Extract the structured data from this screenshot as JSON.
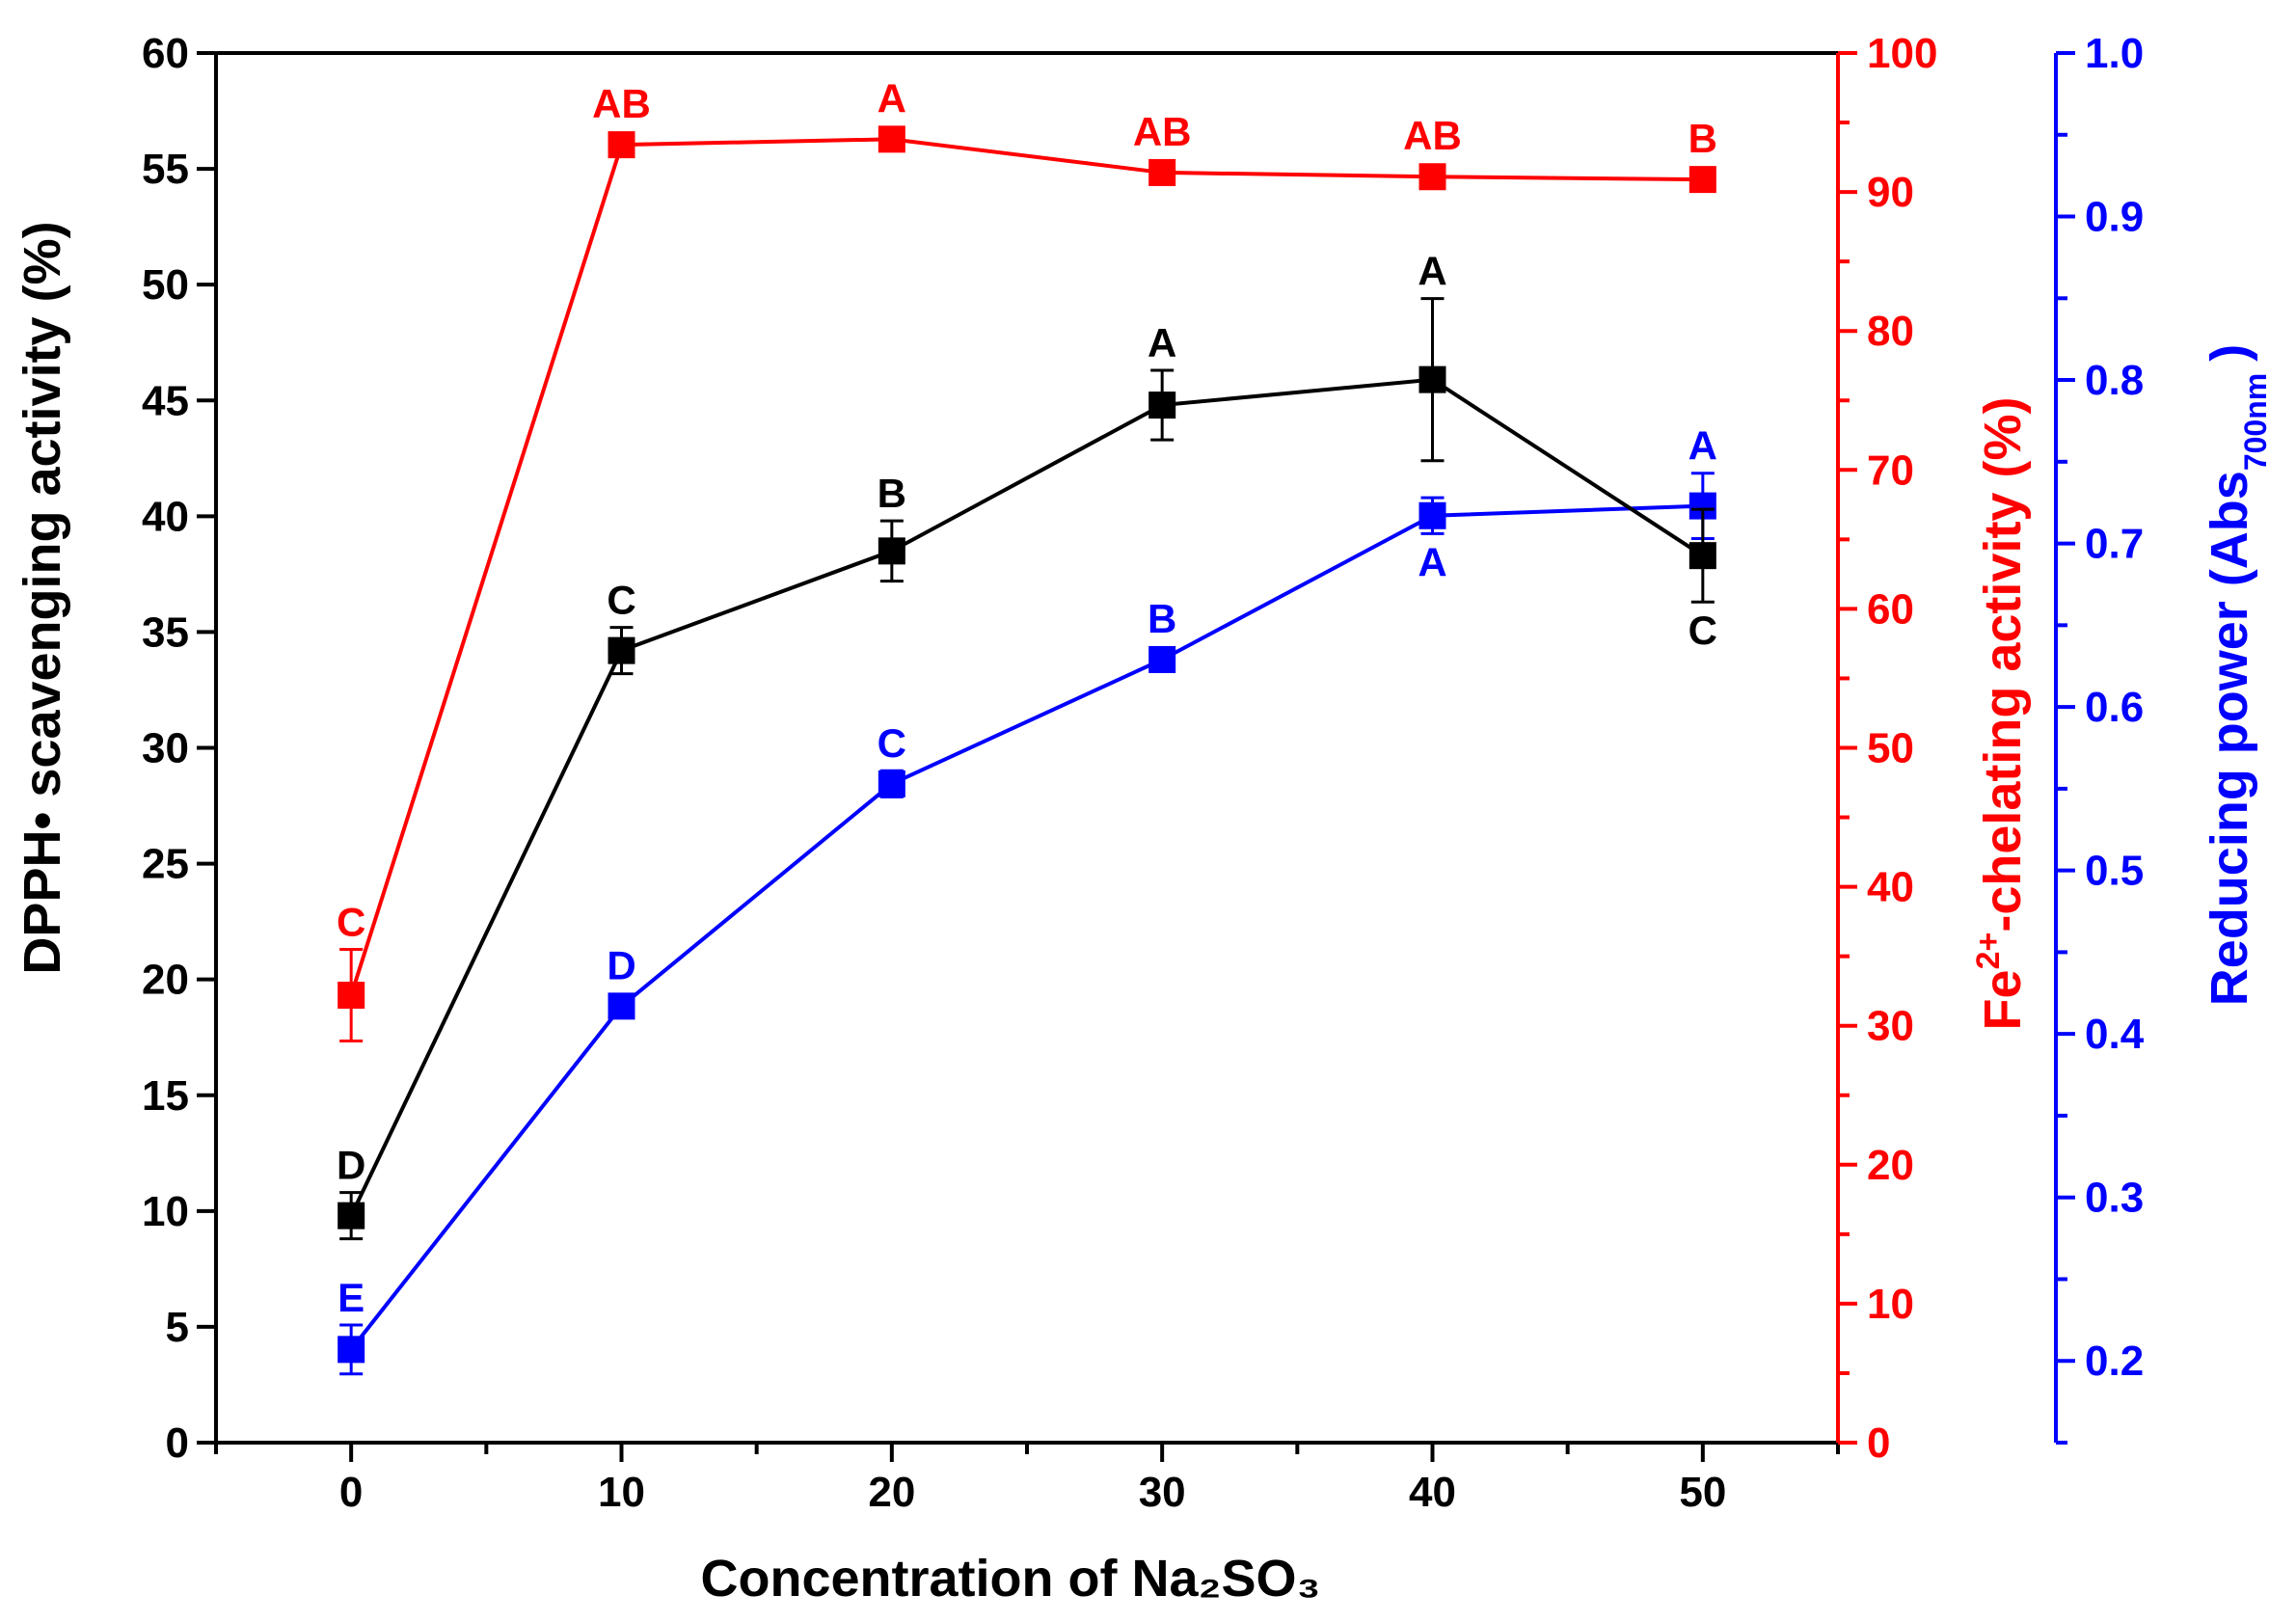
{
  "chart_data": {
    "type": "line",
    "x": [
      0,
      10,
      20,
      30,
      40,
      50
    ],
    "xlabel": "Concentration of Na₂SO₃",
    "xlim": [
      -5,
      55
    ],
    "xticks": [
      0,
      10,
      20,
      30,
      40,
      50
    ],
    "y_left": {
      "label": "DPPH• scavenging activity (%)",
      "ylim": [
        0,
        60
      ],
      "ticks": [
        0,
        5,
        10,
        15,
        20,
        25,
        30,
        35,
        40,
        45,
        50,
        55,
        60
      ],
      "color": "#000000"
    },
    "y_right1": {
      "label_main": "Fe",
      "label_sup": "2+",
      "label_rest": "-chelating activity (%)",
      "ylim": [
        0,
        100
      ],
      "ticks": [
        0,
        10,
        20,
        30,
        40,
        50,
        60,
        70,
        80,
        90,
        100
      ],
      "color": "#ff0000"
    },
    "y_right2": {
      "label_main": "Reducing power (Abs",
      "label_sub": "700nm",
      "label_close": ")",
      "ylim": [
        0.15,
        1.0
      ],
      "ticks": [
        "0.2",
        "0.3",
        "0.4",
        "0.5",
        "0.6",
        "0.7",
        "0.8",
        "0.9",
        "1.0"
      ],
      "color": "#0000ff"
    },
    "series": [
      {
        "name": "DPPH scavenging activity",
        "axis": "left",
        "color": "#000000",
        "values": [
          9.8,
          34.2,
          38.5,
          44.8,
          45.9,
          38.3
        ],
        "errors": [
          1.0,
          1.0,
          1.3,
          1.5,
          3.5,
          2.0
        ],
        "labels": [
          "D",
          "C",
          "B",
          "A",
          "A",
          "C"
        ],
        "label_pos": [
          "above",
          "above",
          "above",
          "above",
          "above",
          "below"
        ]
      },
      {
        "name": "Fe2+-chelating activity",
        "axis": "right1",
        "color": "#ff0000",
        "values": [
          32.2,
          93.4,
          93.8,
          91.4,
          91.1,
          90.9
        ],
        "errors": [
          3.3,
          0.5,
          0.6,
          0.6,
          0.5,
          0.4
        ],
        "labels": [
          "C",
          "AB",
          "A",
          "AB",
          "AB",
          "B"
        ],
        "label_pos": [
          "above",
          "above",
          "above",
          "above",
          "above",
          "above"
        ]
      },
      {
        "name": "Reducing power",
        "axis": "right2",
        "color": "#0000ff",
        "values": [
          0.207,
          0.417,
          0.553,
          0.629,
          0.717,
          0.723
        ],
        "errors": [
          0.015,
          0.004,
          0.008,
          0.005,
          0.011,
          0.02
        ],
        "labels": [
          "E",
          "D",
          "C",
          "B",
          "A",
          "A"
        ],
        "label_pos": [
          "above",
          "above",
          "above",
          "above",
          "below",
          "above"
        ]
      }
    ]
  }
}
